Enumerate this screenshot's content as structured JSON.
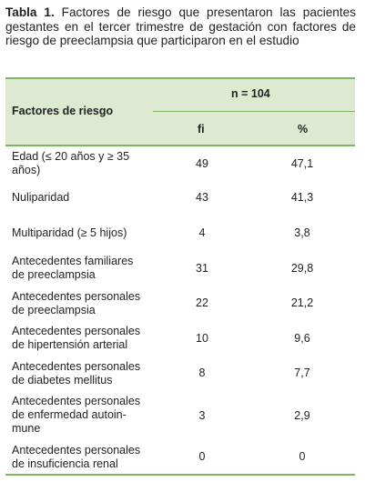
{
  "caption": {
    "label": "Tabla 1.",
    "text": " Factores de riesgo que presentaron las pacientes gestantes en el tercer trimestre de gestación con factores de riesgo de preeclampsia que participaron en el estudio"
  },
  "table": {
    "header_factor": "Factores de riesgo",
    "header_n": "n = 104",
    "header_fi": "fi",
    "header_pct": "%",
    "rows": [
      {
        "factor": "Edad (≤ 20 años y ≥ 35 años)",
        "fi": "49",
        "pct": "47,1"
      },
      {
        "factor": "Nuliparidad",
        "fi": "43",
        "pct": "41,3"
      },
      {
        "factor": "Multiparidad (≥ 5 hijos)",
        "fi": "4",
        "pct": "3,8"
      },
      {
        "factor": "Antecedentes familiares de preeclampsia",
        "fi": "31",
        "pct": "29,8"
      },
      {
        "factor": "Antecedentes personales de preeclampsia",
        "fi": "22",
        "pct": "21,2"
      },
      {
        "factor": "Antecedentes personales de hipertensión arterial",
        "fi": "10",
        "pct": "9,6"
      },
      {
        "factor": "Antecedentes personales de diabetes mellitus",
        "fi": "8",
        "pct": "7,7"
      },
      {
        "factor": "Antecedentes personales de enfermedad autoin-mune",
        "fi": "3",
        "pct": "2,9"
      },
      {
        "factor": "Antecedentes personales de insuficiencia renal",
        "fi": "0",
        "pct": "0"
      }
    ]
  },
  "colors": {
    "rule": "#7fb55f",
    "header_bg": "#dde9d0"
  }
}
